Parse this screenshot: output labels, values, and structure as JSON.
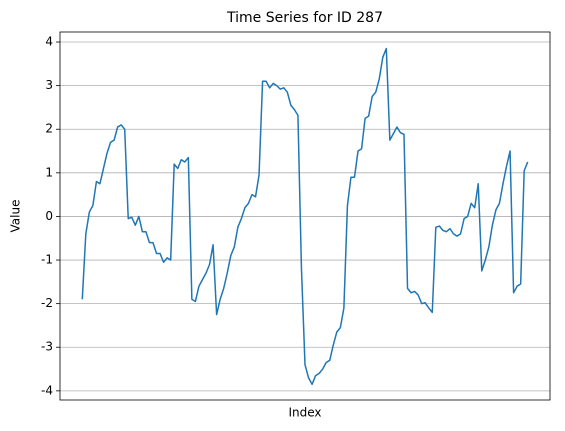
{
  "chart_data": {
    "type": "line",
    "title": "Time Series for ID 287",
    "xlabel": "Index",
    "ylabel": "Value",
    "series": [
      {
        "name": "ID 287",
        "color": "#1f77b4",
        "values": [
          -1.9,
          -0.4,
          0.1,
          0.25,
          0.8,
          0.75,
          1.1,
          1.45,
          1.7,
          1.75,
          2.05,
          2.1,
          2.0,
          -0.05,
          -0.02,
          -0.2,
          0.0,
          -0.35,
          -0.35,
          -0.6,
          -0.6,
          -0.85,
          -0.85,
          -1.05,
          -0.95,
          -1.0,
          1.2,
          1.1,
          1.3,
          1.25,
          1.35,
          -1.9,
          -1.95,
          -1.6,
          -1.45,
          -1.3,
          -1.1,
          -0.65,
          -2.25,
          -1.9,
          -1.65,
          -1.3,
          -0.9,
          -0.7,
          -0.25,
          -0.05,
          0.2,
          0.3,
          0.5,
          0.45,
          0.95,
          3.1,
          3.1,
          2.95,
          3.05,
          3.0,
          2.92,
          2.95,
          2.85,
          2.55,
          2.45,
          2.32,
          -1.2,
          -3.4,
          -3.7,
          -3.85,
          -3.65,
          -3.6,
          -3.5,
          -3.35,
          -3.3,
          -2.95,
          -2.65,
          -2.55,
          -2.1,
          0.25,
          0.9,
          0.9,
          1.5,
          1.55,
          2.25,
          2.3,
          2.75,
          2.85,
          3.15,
          3.65,
          3.85,
          1.75,
          1.9,
          2.05,
          1.92,
          1.88,
          -1.65,
          -1.75,
          -1.72,
          -1.8,
          -2.0,
          -1.98,
          -2.1,
          -2.2,
          -0.25,
          -0.22,
          -0.32,
          -0.35,
          -0.28,
          -0.4,
          -0.45,
          -0.4,
          -0.05,
          0.0,
          0.3,
          0.2,
          0.75,
          -1.25,
          -1.0,
          -0.7,
          -0.2,
          0.15,
          0.3,
          0.75,
          1.15,
          1.5,
          -1.75,
          -1.6,
          -1.55,
          1.05,
          1.25
        ]
      }
    ],
    "ylim": [
      -4.21,
      4.23
    ],
    "yticks": [
      -4,
      -3,
      -2,
      -1,
      0,
      1,
      2,
      3,
      4
    ],
    "grid": "y"
  }
}
